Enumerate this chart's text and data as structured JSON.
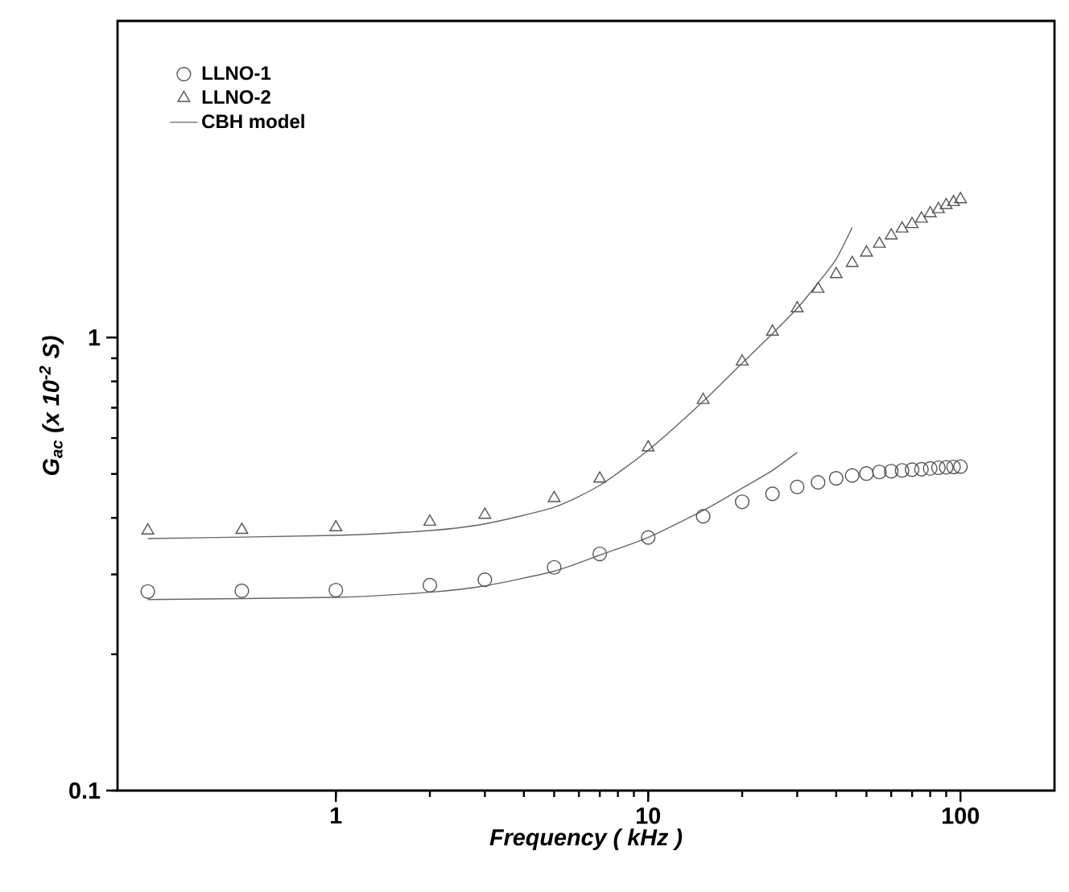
{
  "chart_data": {
    "type": "scatter",
    "xlabel": "Frequency ( kHz )",
    "ylabel": "G$_{ac}$ (x 10$^{-2}$ S)",
    "log": "xy",
    "xlim": [
      0.2,
      200
    ],
    "ylim": [
      0.1,
      5
    ],
    "xticks": [
      1,
      10,
      100
    ],
    "yticks": [
      0.1,
      1
    ],
    "grid": false,
    "legend": "top left",
    "series": [
      {
        "name": "LLNO-1",
        "marker": "circle",
        "color": "#555555",
        "x": [
          0.25,
          0.5,
          1,
          2,
          3,
          5,
          7,
          10,
          15,
          20,
          25,
          30,
          35,
          40,
          45,
          50,
          55,
          60,
          65,
          70,
          75,
          80,
          85,
          90,
          95,
          100
        ],
        "values": [
          0.275,
          0.276,
          0.277,
          0.284,
          0.292,
          0.311,
          0.333,
          0.362,
          0.403,
          0.434,
          0.452,
          0.468,
          0.479,
          0.489,
          0.496,
          0.501,
          0.505,
          0.507,
          0.509,
          0.511,
          0.512,
          0.514,
          0.516,
          0.517,
          0.518,
          0.519
        ]
      },
      {
        "name": "LLNO-2",
        "marker": "triangle",
        "color": "#555555",
        "x": [
          0.25,
          0.5,
          1,
          2,
          3,
          5,
          7,
          10,
          15,
          20,
          25,
          30,
          35,
          40,
          45,
          50,
          55,
          60,
          65,
          70,
          75,
          80,
          85,
          90,
          95,
          100
        ],
        "values": [
          0.375,
          0.376,
          0.381,
          0.392,
          0.406,
          0.442,
          0.488,
          0.572,
          0.728,
          0.885,
          1.03,
          1.16,
          1.28,
          1.38,
          1.46,
          1.54,
          1.61,
          1.68,
          1.74,
          1.78,
          1.83,
          1.88,
          1.92,
          1.96,
          1.99,
          2.02
        ]
      },
      {
        "name": "CBH model",
        "type": "line",
        "line_style": "solid",
        "color": "#666666",
        "x": [
          0.25,
          1,
          2,
          3,
          5,
          7,
          10,
          15,
          20,
          25,
          30,
          35,
          40,
          45
        ],
        "values": [
          0.36,
          0.366,
          0.375,
          0.388,
          0.422,
          0.472,
          0.564,
          0.723,
          0.878,
          1.02,
          1.16,
          1.32,
          1.49,
          1.75
        ]
      },
      {
        "type": "line",
        "line_style": "solid",
        "color": "#666666",
        "x": [
          0.25,
          1,
          2,
          3,
          5,
          7,
          10,
          15,
          20,
          25,
          30
        ],
        "values": [
          0.264,
          0.267,
          0.274,
          0.283,
          0.305,
          0.331,
          0.362,
          0.415,
          0.465,
          0.509,
          0.558
        ]
      }
    ]
  }
}
